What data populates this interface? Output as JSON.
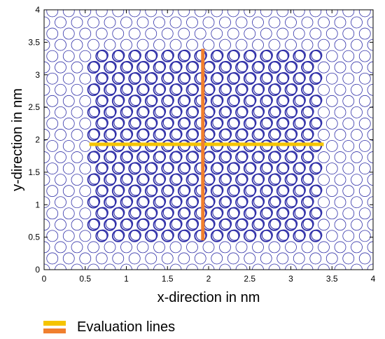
{
  "chart_data": {
    "type": "scatter",
    "xlabel": "x-direction in nm",
    "ylabel": "y-direction in nm",
    "xlim": [
      0,
      4
    ],
    "ylim": [
      0,
      4
    ],
    "x_ticks": [
      "0",
      "0.5",
      "1",
      "1.5",
      "2",
      "2.5",
      "3",
      "3.5",
      "4"
    ],
    "y_ticks": [
      "0",
      "0.5",
      "1",
      "1.5",
      "2",
      "2.5",
      "3",
      "3.5",
      "4"
    ],
    "grid": false,
    "legend": {
      "position": "bottom-left"
    },
    "lattice": {
      "x_spacing": 0.2,
      "y_spacing": 0.173,
      "row_shift": 0.1,
      "circle_radius": 0.068,
      "color": "#3030a8"
    },
    "dense_region": {
      "x_range": [
        0.55,
        3.4
      ],
      "y_range": [
        0.45,
        3.4
      ]
    },
    "series": [
      {
        "name": "Evaluation lines",
        "color": "#f5c400",
        "x": [
          0.55,
          3.4
        ],
        "y": [
          1.93,
          1.93
        ]
      },
      {
        "color": "#f07f2e",
        "x": [
          1.93,
          1.93
        ],
        "y": [
          0.45,
          3.4
        ]
      }
    ]
  }
}
